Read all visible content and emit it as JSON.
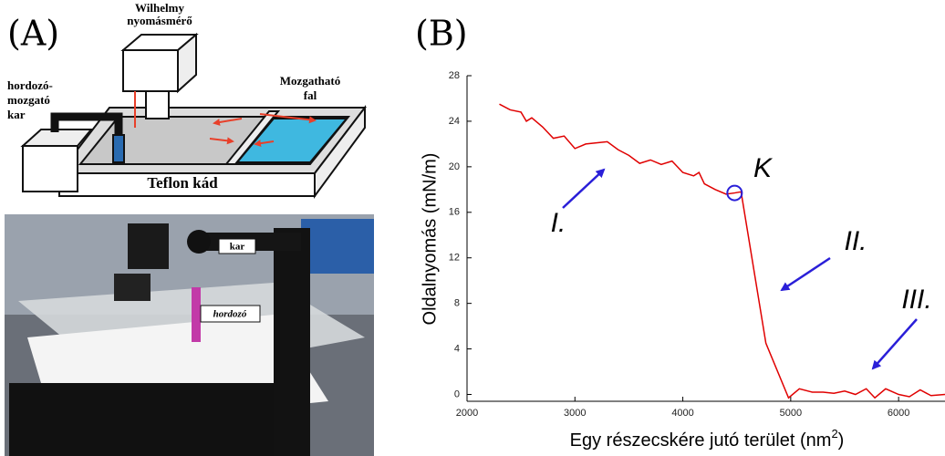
{
  "panel_a": {
    "label": "(A)",
    "diagram_labels": {
      "gauge": [
        "Wilhelmy",
        "nyomásmérő"
      ],
      "arm": [
        "hordozó-",
        "mozgató",
        "kar"
      ],
      "wall": [
        "Mozgatható",
        "fal"
      ],
      "trough": "Teflon kád"
    },
    "photo_labels": {
      "arm": "kar",
      "substrate": "hordozó"
    }
  },
  "panel_b": {
    "label": "(B)"
  },
  "chart_data": {
    "type": "line",
    "ylabel": "Oldalnyomás (mN/m)",
    "xlabel": {
      "text": "Egy részecskére jutó terület (nm",
      "sup": "2",
      "end": ")"
    },
    "x": [
      2300,
      2400,
      2500,
      2550,
      2600,
      2700,
      2800,
      2900,
      3000,
      3100,
      3200,
      3300,
      3400,
      3500,
      3600,
      3700,
      3800,
      3900,
      4000,
      4100,
      4150,
      4200,
      4300,
      4400,
      4480,
      4540,
      4770,
      4980,
      5080,
      5200,
      5300,
      5400,
      5500,
      5600,
      5700,
      5780,
      5880,
      6000,
      6100,
      6200,
      6300,
      6430
    ],
    "series": [
      {
        "color": "#e00000",
        "values": [
          25.5,
          25.0,
          24.8,
          24.0,
          24.3,
          23.5,
          22.5,
          22.7,
          21.6,
          22.0,
          22.1,
          22.2,
          21.5,
          21.0,
          20.3,
          20.6,
          20.2,
          20.5,
          19.5,
          19.2,
          19.5,
          18.5,
          18.0,
          17.6,
          17.7,
          17.8,
          4.5,
          -0.3,
          0.5,
          0.2,
          0.2,
          0.1,
          0.3,
          0.0,
          0.5,
          -0.3,
          0.5,
          0.0,
          -0.2,
          0.4,
          -0.1,
          0.0
        ]
      }
    ],
    "xlim": [
      2000,
      6430
    ],
    "ylim": [
      -0.6,
      28
    ],
    "xticks": [
      2000,
      3000,
      4000,
      5000,
      6000
    ],
    "yticks": [
      0,
      4,
      8,
      12,
      16,
      20,
      24,
      28
    ],
    "annotations": [
      "I.",
      "II.",
      "III.",
      "K"
    ],
    "annotation_color": "#2a1fd8"
  }
}
